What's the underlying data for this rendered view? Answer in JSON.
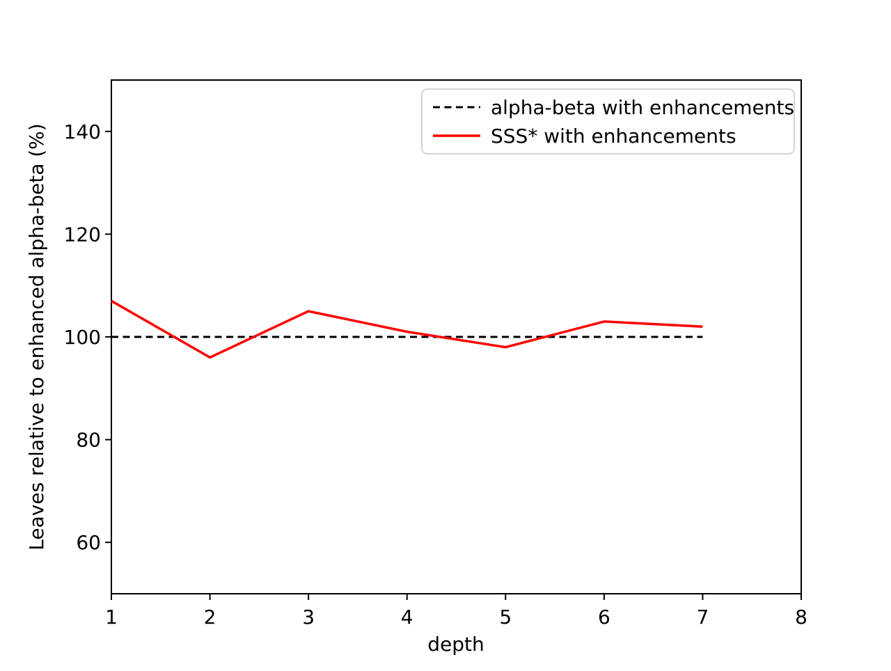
{
  "chart_data": {
    "type": "line",
    "title": "",
    "xlabel": "depth",
    "ylabel": "Leaves relative to enhanced alpha-beta (%)",
    "x": [
      1,
      2,
      3,
      4,
      5,
      6,
      7
    ],
    "series": [
      {
        "name": "alpha-beta with enhancements",
        "values": [
          100,
          100,
          100,
          100,
          100,
          100,
          100
        ],
        "color": "#000000",
        "style": "dashed"
      },
      {
        "name": "SSS* with enhancements",
        "values": [
          107,
          96,
          105,
          101,
          98,
          103,
          102
        ],
        "color": "#ff0000",
        "style": "solid"
      }
    ],
    "xlim": [
      1,
      8
    ],
    "ylim": [
      50,
      150
    ],
    "xticks": [
      1,
      2,
      3,
      4,
      5,
      6,
      7,
      8
    ],
    "yticks": [
      60,
      80,
      100,
      120,
      140
    ],
    "grid": false,
    "legend_position": "upper right"
  }
}
